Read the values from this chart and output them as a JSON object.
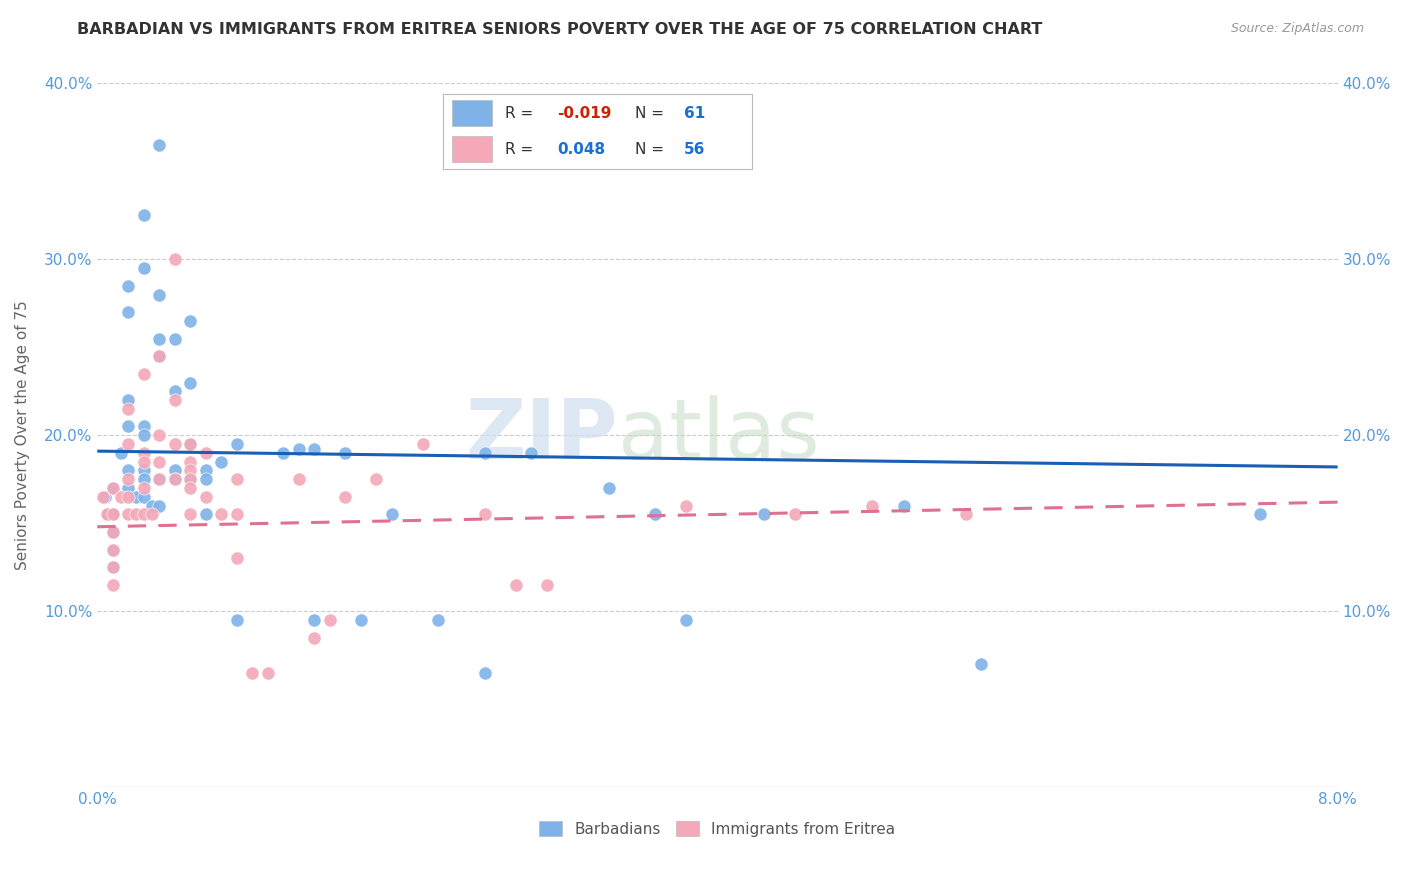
{
  "title": "BARBADIAN VS IMMIGRANTS FROM ERITREA SENIORS POVERTY OVER THE AGE OF 75 CORRELATION CHART",
  "source": "Source: ZipAtlas.com",
  "ylabel": "Seniors Poverty Over the Age of 75",
  "xlim": [
    0.0,
    0.08
  ],
  "ylim": [
    0.0,
    0.4
  ],
  "xticks": [
    0.0,
    0.01,
    0.02,
    0.03,
    0.04,
    0.05,
    0.06,
    0.07,
    0.08
  ],
  "xticklabels": [
    "0.0%",
    "",
    "",
    "",
    "",
    "",
    "",
    "",
    "8.0%"
  ],
  "yticks": [
    0.0,
    0.1,
    0.2,
    0.3,
    0.4
  ],
  "yticklabels": [
    "",
    "10.0%",
    "20.0%",
    "30.0%",
    "40.0%"
  ],
  "barbadian_color": "#7fb3e8",
  "eritrea_color": "#f4a8b8",
  "barbadian_line_color": "#1a5fb4",
  "eritrea_line_color": "#e07090",
  "legend_R_barbadian": "-0.019",
  "legend_N_barbadian": "61",
  "legend_R_eritrea": "0.048",
  "legend_N_eritrea": "56",
  "watermark_zip": "ZIP",
  "watermark_atlas": "atlas",
  "barb_trend_y0": 0.191,
  "barb_trend_y1": 0.182,
  "erit_trend_y0": 0.148,
  "erit_trend_y1": 0.162,
  "barbadian_x": [
    0.0005,
    0.0007,
    0.001,
    0.001,
    0.001,
    0.001,
    0.001,
    0.0015,
    0.002,
    0.002,
    0.002,
    0.002,
    0.002,
    0.002,
    0.0025,
    0.003,
    0.003,
    0.003,
    0.003,
    0.003,
    0.003,
    0.003,
    0.0035,
    0.004,
    0.004,
    0.004,
    0.004,
    0.004,
    0.004,
    0.005,
    0.005,
    0.005,
    0.005,
    0.006,
    0.006,
    0.006,
    0.006,
    0.007,
    0.007,
    0.007,
    0.008,
    0.009,
    0.009,
    0.012,
    0.013,
    0.014,
    0.014,
    0.016,
    0.017,
    0.019,
    0.022,
    0.025,
    0.025,
    0.028,
    0.033,
    0.036,
    0.038,
    0.043,
    0.052,
    0.057,
    0.075
  ],
  "barbadian_y": [
    0.165,
    0.155,
    0.17,
    0.155,
    0.145,
    0.135,
    0.125,
    0.19,
    0.285,
    0.27,
    0.22,
    0.205,
    0.18,
    0.17,
    0.165,
    0.325,
    0.295,
    0.205,
    0.2,
    0.18,
    0.175,
    0.165,
    0.16,
    0.365,
    0.28,
    0.255,
    0.245,
    0.175,
    0.16,
    0.255,
    0.225,
    0.18,
    0.175,
    0.265,
    0.23,
    0.195,
    0.175,
    0.18,
    0.175,
    0.155,
    0.185,
    0.195,
    0.095,
    0.19,
    0.192,
    0.192,
    0.095,
    0.19,
    0.095,
    0.155,
    0.095,
    0.19,
    0.065,
    0.19,
    0.17,
    0.155,
    0.095,
    0.155,
    0.16,
    0.07,
    0.155
  ],
  "eritrea_x": [
    0.0004,
    0.0006,
    0.001,
    0.001,
    0.001,
    0.001,
    0.001,
    0.001,
    0.0015,
    0.002,
    0.002,
    0.002,
    0.002,
    0.002,
    0.0025,
    0.003,
    0.003,
    0.003,
    0.003,
    0.003,
    0.0035,
    0.004,
    0.004,
    0.004,
    0.004,
    0.005,
    0.005,
    0.005,
    0.005,
    0.006,
    0.006,
    0.006,
    0.006,
    0.006,
    0.006,
    0.007,
    0.007,
    0.008,
    0.009,
    0.009,
    0.009,
    0.01,
    0.011,
    0.013,
    0.014,
    0.015,
    0.016,
    0.018,
    0.021,
    0.025,
    0.027,
    0.029,
    0.038,
    0.045,
    0.05,
    0.056
  ],
  "eritrea_y": [
    0.165,
    0.155,
    0.17,
    0.155,
    0.145,
    0.135,
    0.125,
    0.115,
    0.165,
    0.215,
    0.195,
    0.175,
    0.165,
    0.155,
    0.155,
    0.235,
    0.19,
    0.185,
    0.17,
    0.155,
    0.155,
    0.245,
    0.2,
    0.185,
    0.175,
    0.3,
    0.22,
    0.195,
    0.175,
    0.195,
    0.185,
    0.18,
    0.175,
    0.17,
    0.155,
    0.19,
    0.165,
    0.155,
    0.175,
    0.155,
    0.13,
    0.065,
    0.065,
    0.175,
    0.085,
    0.095,
    0.165,
    0.175,
    0.195,
    0.155,
    0.115,
    0.115,
    0.16,
    0.155,
    0.16,
    0.155
  ]
}
